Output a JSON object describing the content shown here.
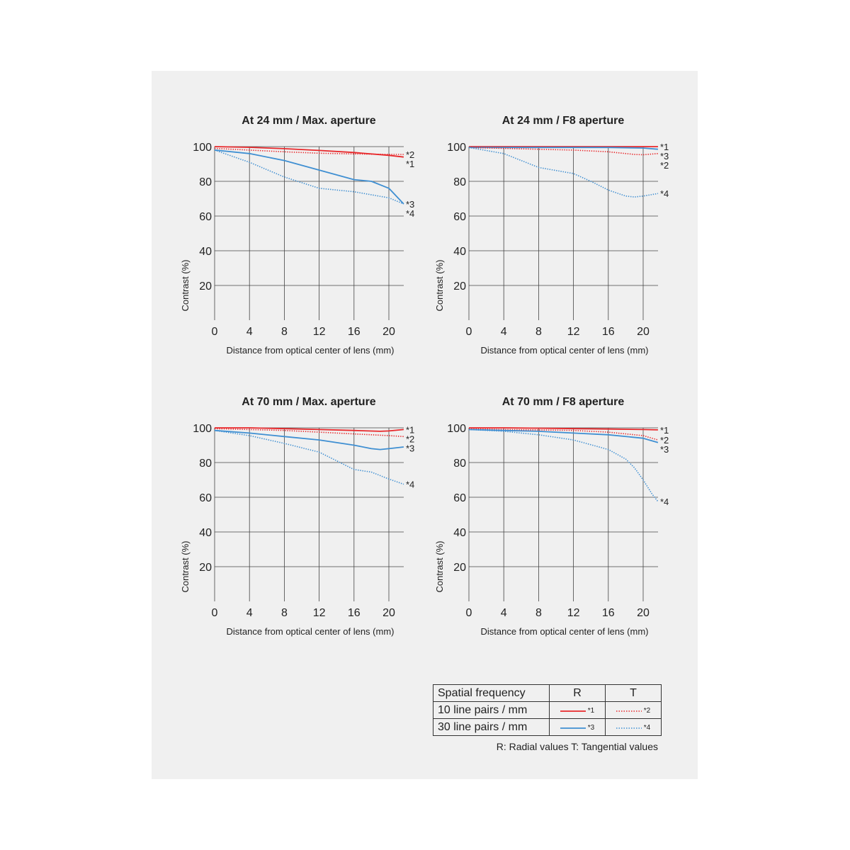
{
  "chart_data": [
    {
      "type": "line",
      "title": "At 24 mm / Max. aperture",
      "xlabel": "Distance from optical center of lens (mm)",
      "ylabel": "Contrast (%)",
      "xlim": [
        0,
        21.7
      ],
      "ylim": [
        0,
        100
      ],
      "xticks": [
        0,
        4,
        8,
        12,
        16,
        20
      ],
      "yticks": [
        20,
        40,
        60,
        80,
        100
      ],
      "grid": true,
      "series": [
        {
          "name": "*1",
          "style": "solid",
          "color": "#e8282b",
          "x": [
            0,
            4,
            8,
            12,
            16,
            20,
            21.7
          ],
          "y": [
            100,
            99.6,
            98.8,
            97.8,
            96.6,
            95,
            94
          ]
        },
        {
          "name": "*2",
          "style": "dotted",
          "color": "#e8282b",
          "x": [
            0,
            4,
            8,
            12,
            16,
            20,
            21.7
          ],
          "y": [
            99,
            98,
            97,
            96.2,
            95.8,
            95.5,
            95.5
          ]
        },
        {
          "name": "*3",
          "style": "solid",
          "color": "#3f8fd2",
          "x": [
            0,
            4,
            8,
            12,
            16,
            18,
            20,
            21.7
          ],
          "y": [
            98,
            96,
            92,
            86.5,
            81,
            80,
            76,
            67
          ]
        },
        {
          "name": "*4",
          "style": "dotted",
          "color": "#3f8fd2",
          "x": [
            0,
            4,
            8,
            12,
            16,
            20,
            21.7
          ],
          "y": [
            98,
            91,
            82.5,
            76,
            74,
            70.5,
            67
          ]
        }
      ]
    },
    {
      "type": "line",
      "title": "At 24 mm / F8 aperture",
      "xlabel": "Distance from optical center of lens (mm)",
      "ylabel": "Contrast (%)",
      "xlim": [
        0,
        21.7
      ],
      "ylim": [
        0,
        100
      ],
      "xticks": [
        0,
        4,
        8,
        12,
        16,
        20
      ],
      "yticks": [
        20,
        40,
        60,
        80,
        100
      ],
      "grid": true,
      "series": [
        {
          "name": "*1",
          "style": "solid",
          "color": "#e8282b",
          "x": [
            0,
            4,
            8,
            12,
            16,
            20,
            21.7
          ],
          "y": [
            100,
            100,
            100,
            100,
            100,
            100,
            100
          ]
        },
        {
          "name": "*3",
          "style": "solid",
          "color": "#3f8fd2",
          "x": [
            0,
            4,
            8,
            12,
            16,
            20,
            21.7
          ],
          "y": [
            99.5,
            99.5,
            99.5,
            99.5,
            99.5,
            99.2,
            98.5
          ]
        },
        {
          "name": "*2",
          "style": "dotted",
          "color": "#e8282b",
          "x": [
            0,
            4,
            8,
            12,
            16,
            19,
            20,
            21.7
          ],
          "y": [
            99.5,
            99,
            98.5,
            98,
            97,
            95.5,
            95.3,
            96
          ]
        },
        {
          "name": "*4",
          "style": "dotted",
          "color": "#3f8fd2",
          "x": [
            0,
            4,
            8,
            12,
            14,
            16,
            18,
            19,
            20,
            21.7
          ],
          "y": [
            99.5,
            96,
            88,
            84.5,
            80,
            75,
            71.5,
            71,
            71.5,
            73
          ]
        }
      ]
    },
    {
      "type": "line",
      "title": "At 70 mm / Max. aperture",
      "xlabel": "Distance from optical center of lens (mm)",
      "ylabel": "Contrast (%)",
      "xlim": [
        0,
        21.7
      ],
      "ylim": [
        0,
        100
      ],
      "xticks": [
        0,
        4,
        8,
        12,
        16,
        20
      ],
      "yticks": [
        20,
        40,
        60,
        80,
        100
      ],
      "grid": true,
      "series": [
        {
          "name": "*1",
          "style": "solid",
          "color": "#e8282b",
          "x": [
            0,
            4,
            8,
            12,
            16,
            19,
            20,
            21.7
          ],
          "y": [
            100,
            100,
            99.5,
            99,
            98.5,
            98,
            98.2,
            99
          ]
        },
        {
          "name": "*2",
          "style": "dotted",
          "color": "#e8282b",
          "x": [
            0,
            4,
            8,
            12,
            16,
            20,
            21.7
          ],
          "y": [
            99.5,
            99,
            98.5,
            97.5,
            96.5,
            95.5,
            95
          ]
        },
        {
          "name": "*3",
          "style": "solid",
          "color": "#3f8fd2",
          "x": [
            0,
            4,
            8,
            12,
            16,
            18,
            19,
            20,
            21.7
          ],
          "y": [
            98.5,
            97,
            95,
            93,
            90,
            88,
            87.5,
            88,
            89
          ]
        },
        {
          "name": "*4",
          "style": "dotted",
          "color": "#3f8fd2",
          "x": [
            0,
            4,
            8,
            12,
            14,
            16,
            18,
            20,
            21.7
          ],
          "y": [
            98.5,
            95.5,
            91,
            86,
            81,
            76,
            74.5,
            70.5,
            67.5
          ]
        }
      ]
    },
    {
      "type": "line",
      "title": "At 70 mm / F8 aperture",
      "xlabel": "Distance from optical center of lens (mm)",
      "ylabel": "Contrast (%)",
      "xlim": [
        0,
        21.7
      ],
      "ylim": [
        0,
        100
      ],
      "xticks": [
        0,
        4,
        8,
        12,
        16,
        20
      ],
      "yticks": [
        20,
        40,
        60,
        80,
        100
      ],
      "grid": true,
      "series": [
        {
          "name": "*1",
          "style": "solid",
          "color": "#e8282b",
          "x": [
            0,
            4,
            8,
            12,
            16,
            20,
            21.7
          ],
          "y": [
            100,
            100,
            99.8,
            99.5,
            99.3,
            99,
            98.8
          ]
        },
        {
          "name": "*2",
          "style": "dotted",
          "color": "#e8282b",
          "x": [
            0,
            4,
            8,
            12,
            16,
            20,
            21.7
          ],
          "y": [
            99.5,
            99,
            98.8,
            98.5,
            97.5,
            95.5,
            93
          ]
        },
        {
          "name": "*3",
          "style": "solid",
          "color": "#3f8fd2",
          "x": [
            0,
            4,
            8,
            12,
            16,
            20,
            21.7
          ],
          "y": [
            99,
            98.5,
            98,
            97,
            96,
            94,
            91.5
          ]
        },
        {
          "name": "*4",
          "style": "dotted",
          "color": "#3f8fd2",
          "x": [
            0,
            4,
            8,
            12,
            16,
            18,
            19,
            20,
            21,
            21.7
          ],
          "y": [
            99,
            98,
            96,
            93,
            87.5,
            82,
            77,
            70,
            62,
            57.5
          ]
        }
      ]
    }
  ],
  "legend": {
    "header": {
      "col1": "Spatial frequency",
      "col2": "R",
      "col3": "T"
    },
    "rows": [
      {
        "label": "10 line pairs / mm",
        "r_mark": "*1",
        "t_mark": "*2",
        "color": "#e8282b"
      },
      {
        "label": "30 line pairs / mm",
        "r_mark": "*3",
        "t_mark": "*4",
        "color": "#3f8fd2"
      }
    ],
    "note": "R: Radial values  T: Tangential values"
  }
}
